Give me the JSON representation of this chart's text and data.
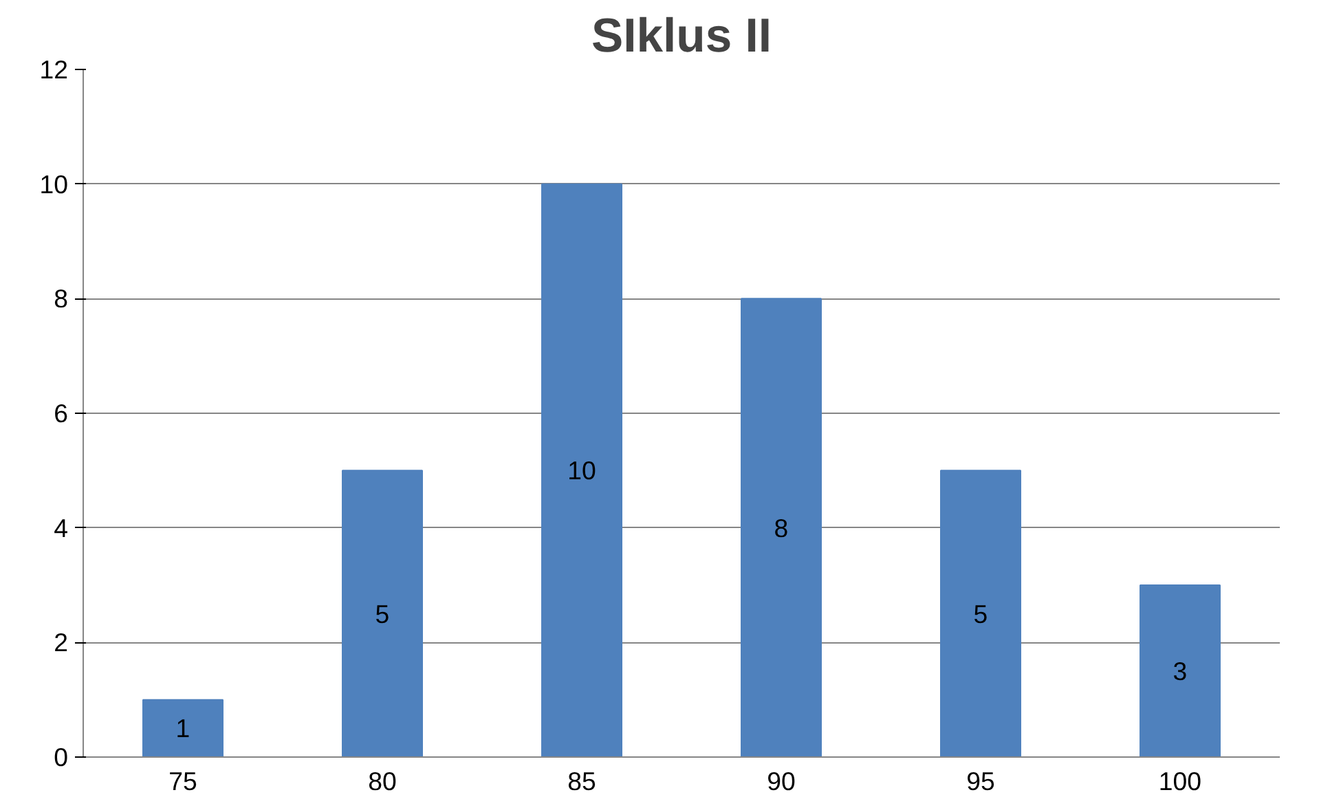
{
  "chart_data": {
    "type": "bar",
    "title": "SIklus II",
    "categories": [
      "75",
      "80",
      "85",
      "90",
      "95",
      "100"
    ],
    "values": [
      1,
      5,
      10,
      8,
      5,
      3
    ],
    "color": "#4f81bd",
    "ylim": [
      0,
      12
    ],
    "yticks": [
      0,
      2,
      4,
      6,
      8,
      10,
      12
    ],
    "grid": "y",
    "data_labels": true
  }
}
